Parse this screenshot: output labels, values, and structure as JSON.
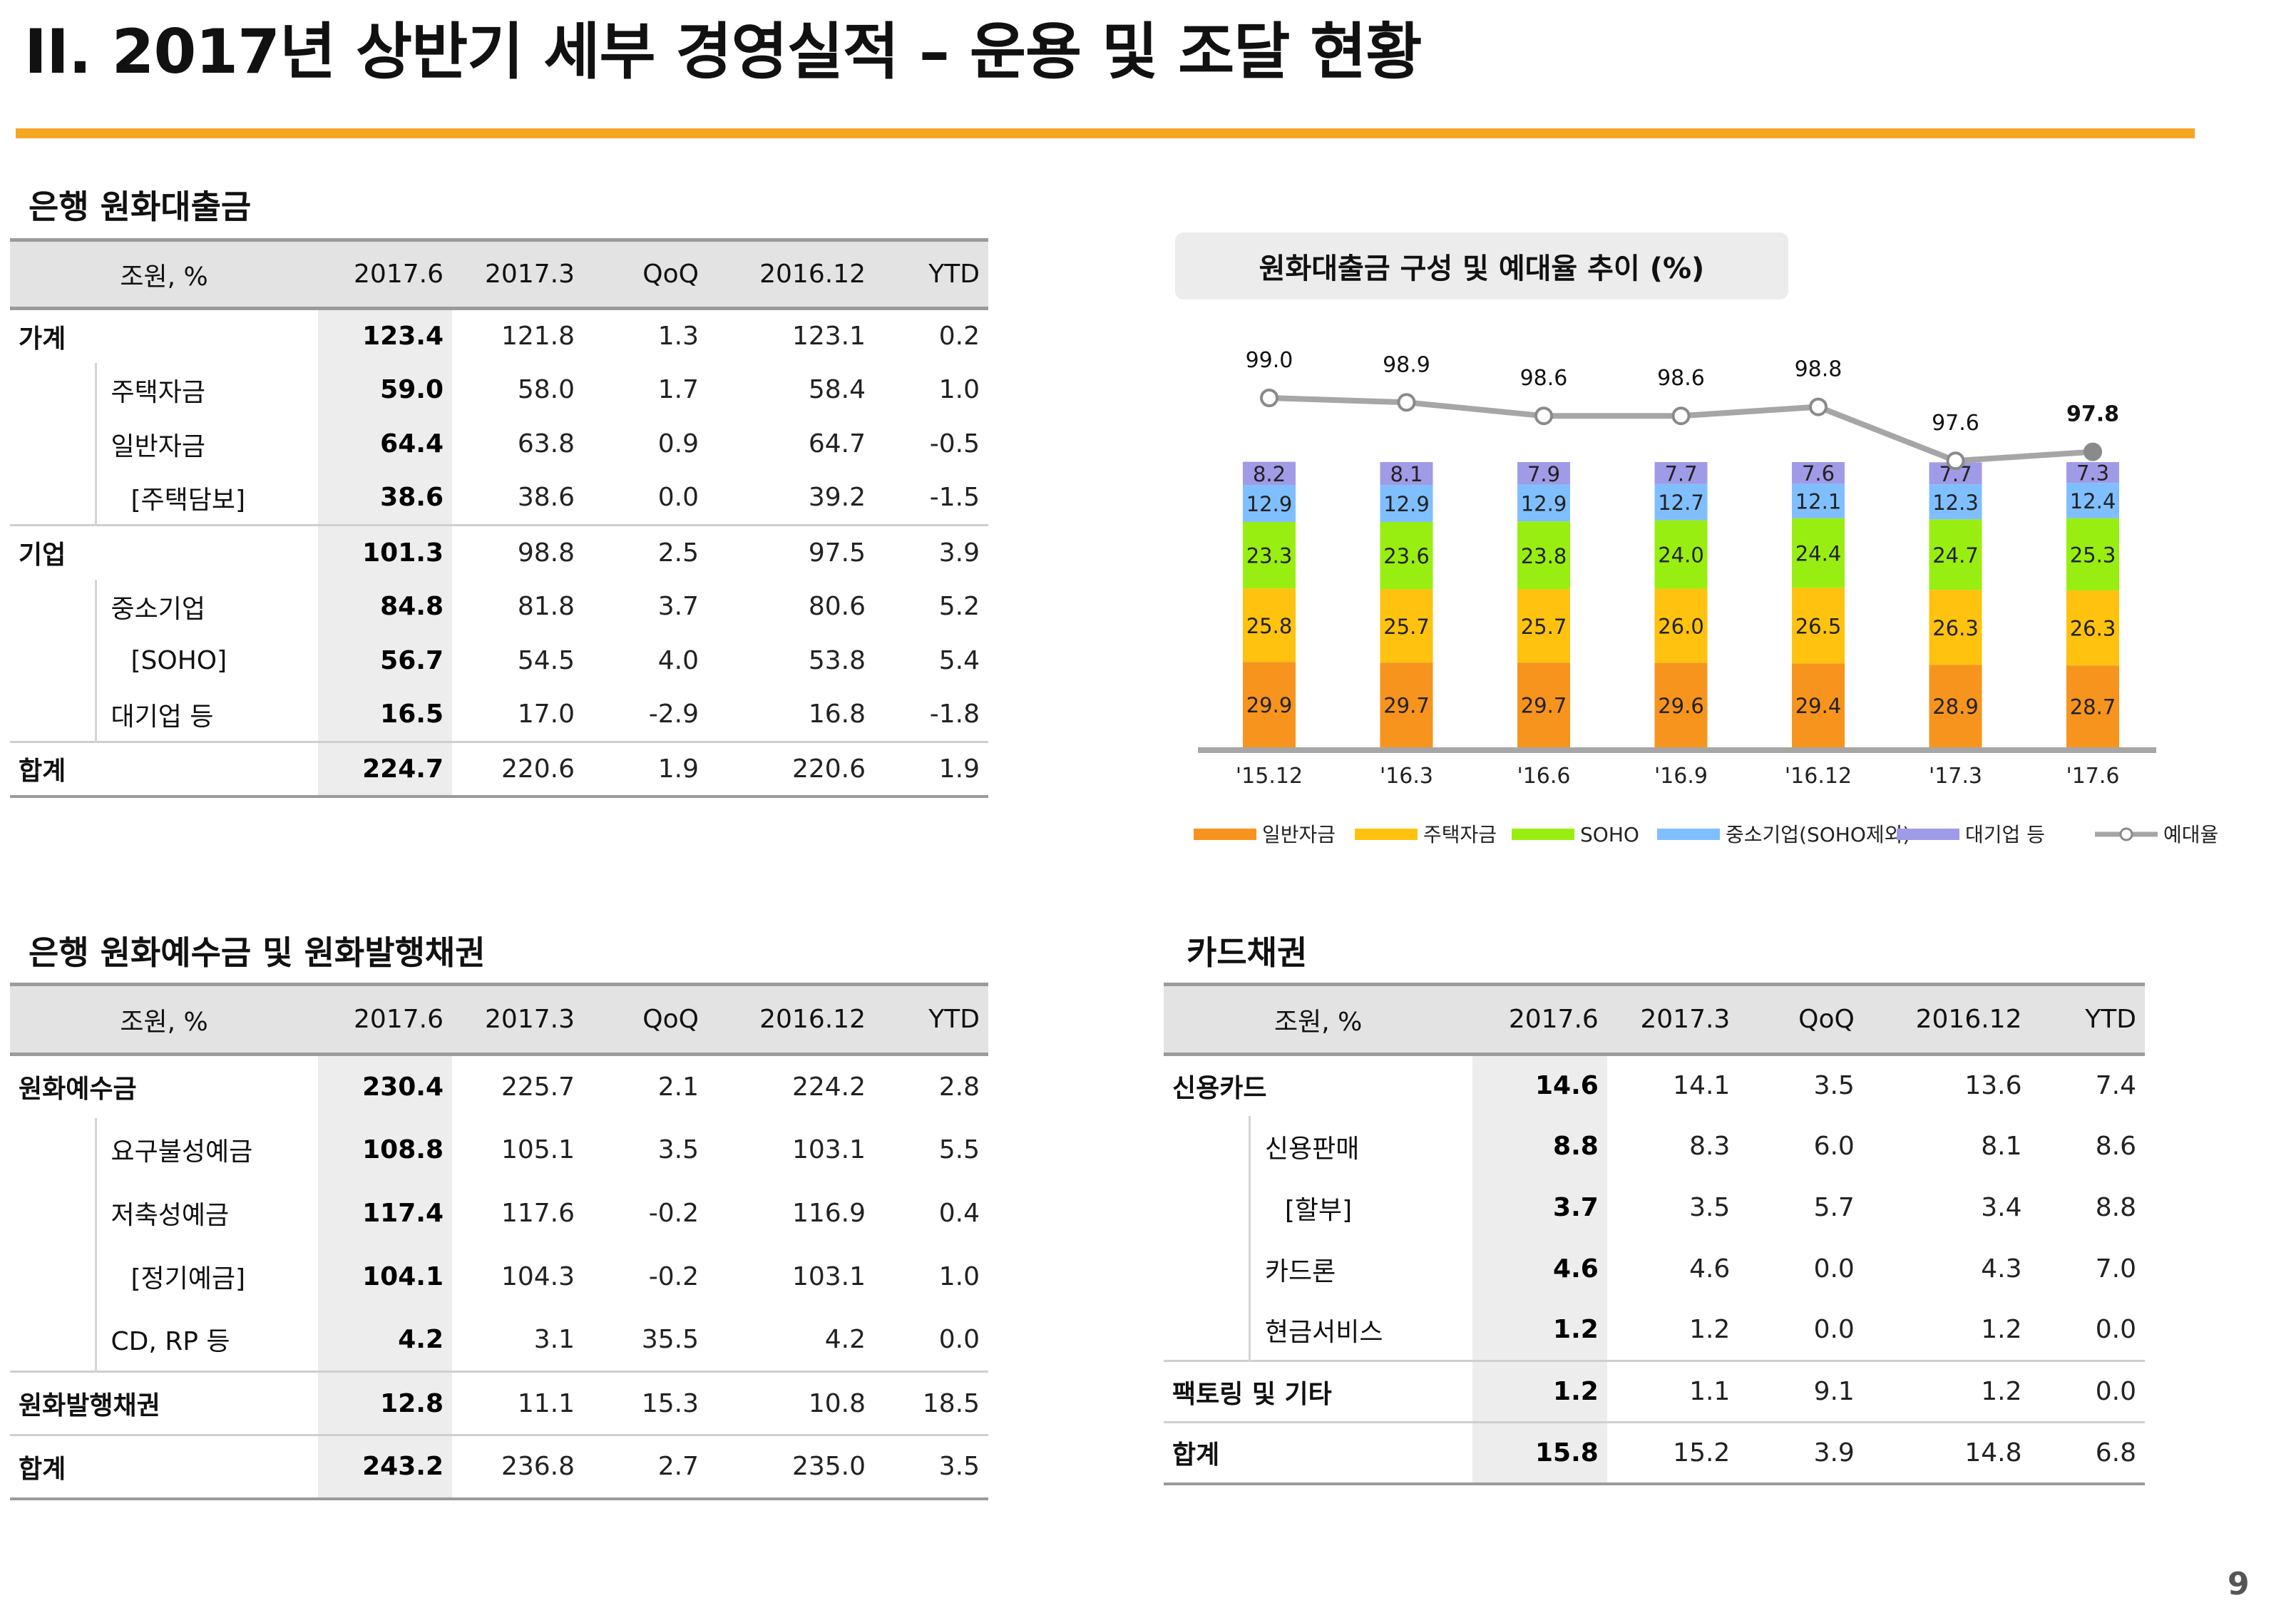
{
  "page": {
    "title": "II. 2017년 상반기 세부 경영실적 – 운용 및 조달 현황",
    "page_number": "9",
    "accent_color": "#f5a623"
  },
  "loans": {
    "section_title": "은행 원화대출금",
    "columns": [
      "조원, %",
      "2017.6",
      "2017.3",
      "QoQ",
      "2016.12",
      "YTD"
    ],
    "rows": [
      {
        "label": "가계",
        "level": 0,
        "values": [
          "123.4",
          "121.8",
          "1.3",
          "123.1",
          "0.2"
        ]
      },
      {
        "label": "주택자금",
        "level": 1,
        "values": [
          "59.0",
          "58.0",
          "1.7",
          "58.4",
          "1.0"
        ]
      },
      {
        "label": "일반자금",
        "level": 1,
        "values": [
          "64.4",
          "63.8",
          "0.9",
          "64.7",
          "-0.5"
        ]
      },
      {
        "label": "[주택담보]",
        "level": 2,
        "values": [
          "38.6",
          "38.6",
          "0.0",
          "39.2",
          "-1.5"
        ]
      },
      {
        "label": "기업",
        "level": 0,
        "values": [
          "101.3",
          "98.8",
          "2.5",
          "97.5",
          "3.9"
        ]
      },
      {
        "label": "중소기업",
        "level": 1,
        "values": [
          "84.8",
          "81.8",
          "3.7",
          "80.6",
          "5.2"
        ]
      },
      {
        "label": "[SOHO]",
        "level": 2,
        "values": [
          "56.7",
          "54.5",
          "4.0",
          "53.8",
          "5.4"
        ]
      },
      {
        "label": "대기업 등",
        "level": 1,
        "values": [
          "16.5",
          "17.0",
          "-2.9",
          "16.8",
          "-1.8"
        ]
      },
      {
        "label": "합계",
        "level": 0,
        "values": [
          "224.7",
          "220.6",
          "1.9",
          "220.6",
          "1.9"
        ]
      }
    ]
  },
  "deposits": {
    "section_title": "은행 원화예수금 및 원화발행채권",
    "columns": [
      "조원, %",
      "2017.6",
      "2017.3",
      "QoQ",
      "2016.12",
      "YTD"
    ],
    "rows": [
      {
        "label": "원화예수금",
        "level": 0,
        "values": [
          "230.4",
          "225.7",
          "2.1",
          "224.2",
          "2.8"
        ]
      },
      {
        "label": "요구불성예금",
        "level": 1,
        "values": [
          "108.8",
          "105.1",
          "3.5",
          "103.1",
          "5.5"
        ]
      },
      {
        "label": "저축성예금",
        "level": 1,
        "values": [
          "117.4",
          "117.6",
          "-0.2",
          "116.9",
          "0.4"
        ]
      },
      {
        "label": "[정기예금]",
        "level": 2,
        "values": [
          "104.1",
          "104.3",
          "-0.2",
          "103.1",
          "1.0"
        ]
      },
      {
        "label": "CD, RP 등",
        "level": 1,
        "values": [
          "4.2",
          "3.1",
          "35.5",
          "4.2",
          "0.0"
        ]
      },
      {
        "label": "원화발행채권",
        "level": 0,
        "values": [
          "12.8",
          "11.1",
          "15.3",
          "10.8",
          "18.5"
        ]
      },
      {
        "label": "합계",
        "level": 0,
        "values": [
          "243.2",
          "236.8",
          "2.7",
          "235.0",
          "3.5"
        ]
      }
    ]
  },
  "cards": {
    "section_title": "카드채권",
    "columns": [
      "조원, %",
      "2017.6",
      "2017.3",
      "QoQ",
      "2016.12",
      "YTD"
    ],
    "rows": [
      {
        "label": "신용카드",
        "level": 0,
        "values": [
          "14.6",
          "14.1",
          "3.5",
          "13.6",
          "7.4"
        ]
      },
      {
        "label": "신용판매",
        "level": 1,
        "values": [
          "8.8",
          "8.3",
          "6.0",
          "8.1",
          "8.6"
        ]
      },
      {
        "label": "[할부]",
        "level": 2,
        "values": [
          "3.7",
          "3.5",
          "5.7",
          "3.4",
          "8.8"
        ]
      },
      {
        "label": "카드론",
        "level": 1,
        "values": [
          "4.6",
          "4.6",
          "0.0",
          "4.3",
          "7.0"
        ]
      },
      {
        "label": "현금서비스",
        "level": 1,
        "values": [
          "1.2",
          "1.2",
          "0.0",
          "1.2",
          "0.0"
        ]
      },
      {
        "label": "팩토링 및 기타",
        "level": 0,
        "values": [
          "1.2",
          "1.1",
          "9.1",
          "1.2",
          "0.0"
        ]
      },
      {
        "label": "합계",
        "level": 0,
        "values": [
          "15.8",
          "15.2",
          "3.9",
          "14.8",
          "6.8"
        ]
      }
    ]
  },
  "chart_data": {
    "type": "bar",
    "title": "원화대출금 구성 및 예대율 추이 (%)",
    "categories": [
      "'15.12",
      "'16.3",
      "'16.6",
      "'16.9",
      "'16.12",
      "'17.3",
      "'17.6"
    ],
    "stacked": true,
    "series": [
      {
        "name": "일반자금",
        "color": "#f7941d",
        "values": [
          29.9,
          29.7,
          29.7,
          29.6,
          29.4,
          28.9,
          28.7
        ]
      },
      {
        "name": "주택자금",
        "color": "#ffc20e",
        "values": [
          25.8,
          25.7,
          25.7,
          26.0,
          26.5,
          26.3,
          26.3
        ]
      },
      {
        "name": "SOHO",
        "color": "#99ee11",
        "values": [
          23.3,
          23.6,
          23.8,
          24.0,
          24.4,
          24.7,
          25.3
        ]
      },
      {
        "name": "중소기업(SOHO제외)",
        "color": "#7fbfff",
        "values": [
          12.9,
          12.9,
          12.9,
          12.7,
          12.1,
          12.3,
          12.4
        ]
      },
      {
        "name": "대기업 등",
        "color": "#a09be6",
        "values": [
          8.2,
          8.1,
          7.9,
          7.7,
          7.6,
          7.7,
          7.3
        ]
      }
    ],
    "line_series": {
      "name": "예대율",
      "color": "#a6a6a6",
      "values": [
        99.0,
        98.9,
        98.6,
        98.6,
        98.8,
        97.6,
        97.8
      ]
    },
    "legend_position": "bottom"
  }
}
